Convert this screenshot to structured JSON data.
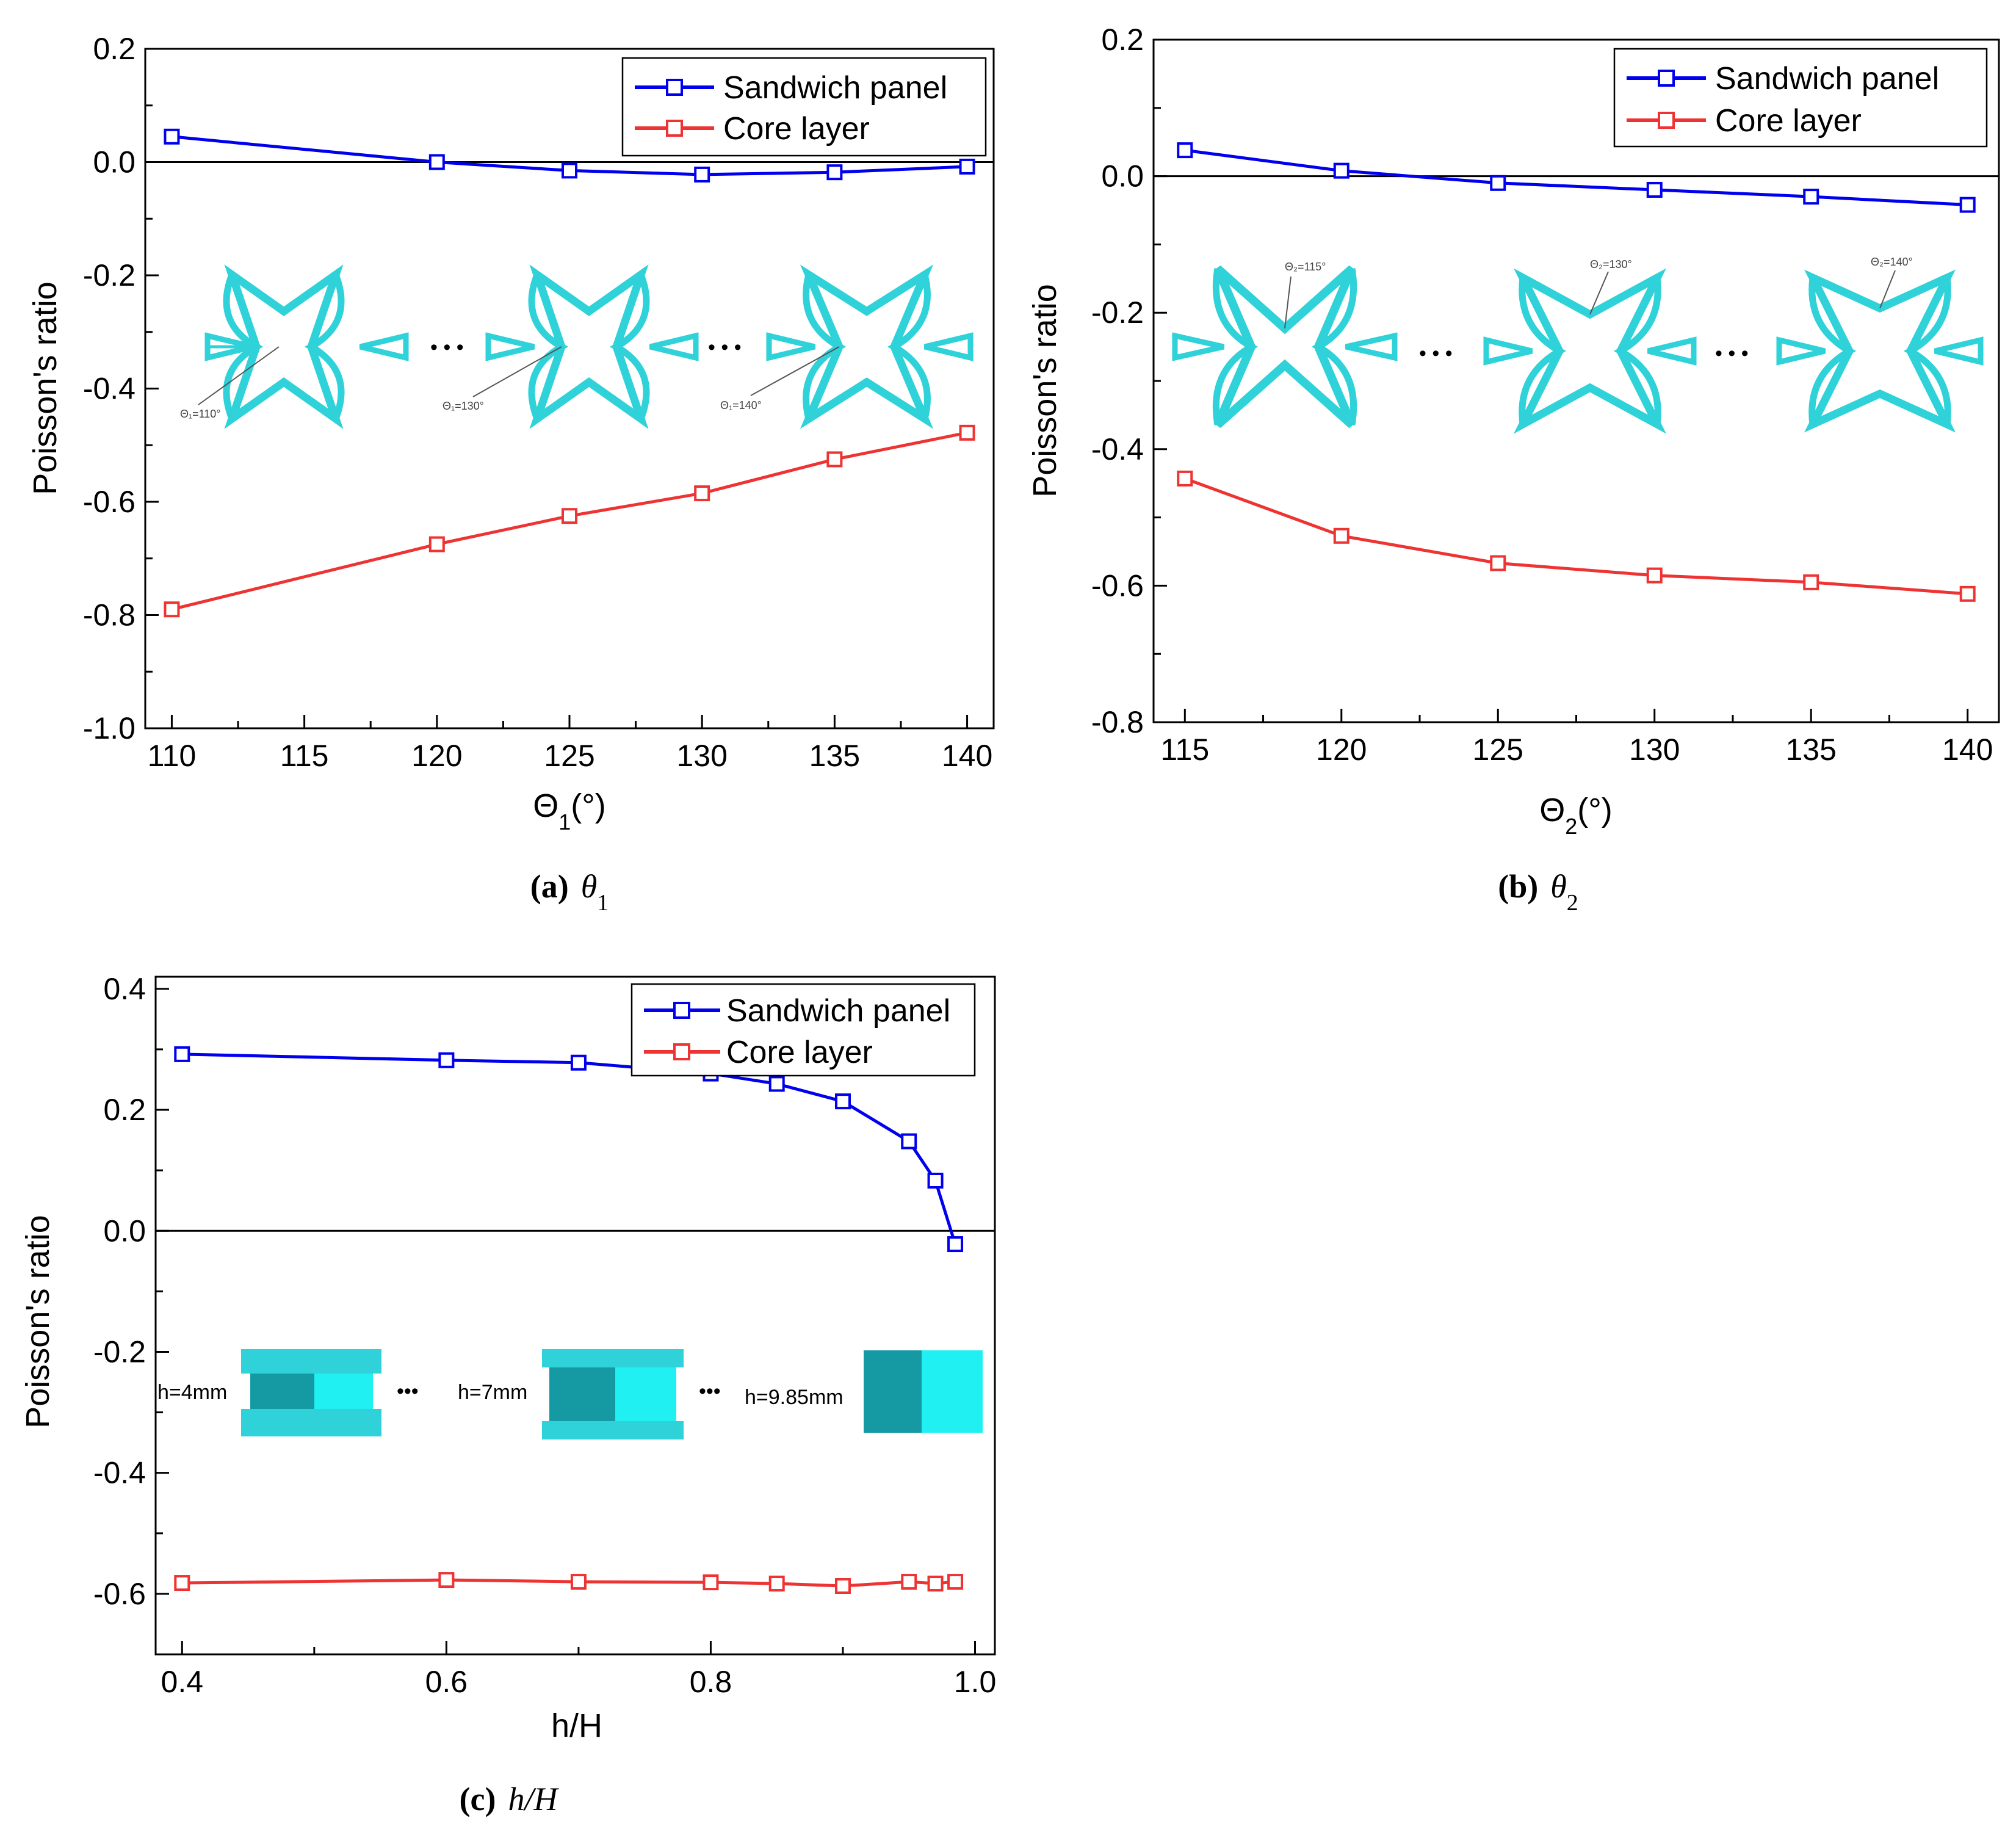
{
  "colors": {
    "sandwich": "#0000EE",
    "core": "#EE3333",
    "inset": "#2ED2D8"
  },
  "chart_data": [
    {
      "id": "a",
      "type": "line",
      "xlabel_main": "Θ",
      "xlabel_sub": "1",
      "xlabel_unit": "(°)",
      "ylabel": "Poisson's ratio",
      "xlim": [
        109,
        141
      ],
      "ylim": [
        -1.0,
        0.2
      ],
      "xticks": [
        110,
        115,
        120,
        125,
        130,
        135,
        140
      ],
      "xtick_labels": [
        "110",
        "115",
        "120",
        "125",
        "130",
        "135",
        "140"
      ],
      "yticks": [
        0.2,
        0.0,
        -0.2,
        -0.4,
        -0.6,
        -0.8,
        -1.0
      ],
      "ytick_labels": [
        "0.2",
        "0.0",
        "-0.2",
        "-0.4",
        "-0.6",
        "-0.8",
        "-1.0"
      ],
      "legend": [
        "Sandwich panel",
        "Core layer"
      ],
      "legend_position": "top-right",
      "series": [
        {
          "name": "Sandwich panel",
          "x": [
            110,
            120,
            125,
            130,
            135,
            140
          ],
          "y": [
            0.045,
            0.0,
            -0.015,
            -0.022,
            -0.018,
            -0.008
          ]
        },
        {
          "name": "Core layer",
          "x": [
            110,
            120,
            125,
            130,
            135,
            140
          ],
          "y": [
            -0.79,
            -0.675,
            -0.625,
            -0.585,
            -0.525,
            -0.478
          ]
        }
      ],
      "insets": [
        "Θ₁=110°",
        "Θ₁=130°",
        "Θ₁=140°"
      ],
      "caption_letter": "(a)",
      "caption_var": "θ",
      "caption_sub": "1"
    },
    {
      "id": "b",
      "type": "line",
      "xlabel_main": "Θ",
      "xlabel_sub": "2",
      "xlabel_unit": "(°)",
      "ylabel": "Poisson's ratio",
      "xlim": [
        114,
        141
      ],
      "ylim": [
        -0.8,
        0.2
      ],
      "xticks": [
        115,
        120,
        125,
        130,
        135,
        140
      ],
      "xtick_labels": [
        "115",
        "120",
        "125",
        "130",
        "135",
        "140"
      ],
      "yticks": [
        0.2,
        0.0,
        -0.2,
        -0.4,
        -0.6,
        -0.8
      ],
      "ytick_labels": [
        "0.2",
        "0.0",
        "-0.2",
        "-0.4",
        "-0.6",
        "-0.8"
      ],
      "legend": [
        "Sandwich panel",
        "Core layer"
      ],
      "legend_position": "top-right",
      "series": [
        {
          "name": "Sandwich panel",
          "x": [
            115,
            120,
            125,
            130,
            135,
            140
          ],
          "y": [
            0.038,
            0.008,
            -0.01,
            -0.02,
            -0.03,
            -0.042
          ]
        },
        {
          "name": "Core layer",
          "x": [
            115,
            120,
            125,
            130,
            135,
            140
          ],
          "y": [
            -0.443,
            -0.527,
            -0.567,
            -0.585,
            -0.595,
            -0.612
          ]
        }
      ],
      "insets": [
        "Θ₂=115°",
        "Θ₂=130°",
        "Θ₂=140°"
      ],
      "caption_letter": "(b)",
      "caption_var": "θ",
      "caption_sub": "2"
    },
    {
      "id": "c",
      "type": "line",
      "xlabel_main": "h/H",
      "xlabel_sub": "",
      "xlabel_unit": "",
      "ylabel": "Poisson's ratio",
      "xlim": [
        0.38,
        1.015
      ],
      "ylim": [
        -0.7,
        0.42
      ],
      "xticks": [
        0.4,
        0.6,
        0.8,
        1.0
      ],
      "xtick_labels": [
        "0.4",
        "0.6",
        "0.8",
        "1.0"
      ],
      "yticks": [
        0.4,
        0.2,
        0.0,
        -0.2,
        -0.4,
        -0.6
      ],
      "ytick_labels": [
        "0.4",
        "0.2",
        "0.0",
        "-0.2",
        "-0.4",
        "-0.6"
      ],
      "legend": [
        "Sandwich panel",
        "Core layer"
      ],
      "legend_position": "top-right",
      "series": [
        {
          "name": "Sandwich panel",
          "x": [
            0.4,
            0.6,
            0.7,
            0.8,
            0.85,
            0.9,
            0.95,
            0.97,
            0.985
          ],
          "y": [
            0.292,
            0.282,
            0.278,
            0.26,
            0.243,
            0.214,
            0.148,
            0.083,
            -0.022
          ]
        },
        {
          "name": "Core layer",
          "x": [
            0.4,
            0.6,
            0.7,
            0.8,
            0.85,
            0.9,
            0.95,
            0.97,
            0.985
          ],
          "y": [
            -0.582,
            -0.577,
            -0.58,
            -0.581,
            -0.583,
            -0.587,
            -0.58,
            -0.583,
            -0.58
          ]
        }
      ],
      "insets": [
        "h=4mm",
        "h=7mm",
        "h=9.85mm"
      ],
      "caption_letter": "(c)",
      "caption_var": "h/H",
      "caption_sub": ""
    }
  ]
}
